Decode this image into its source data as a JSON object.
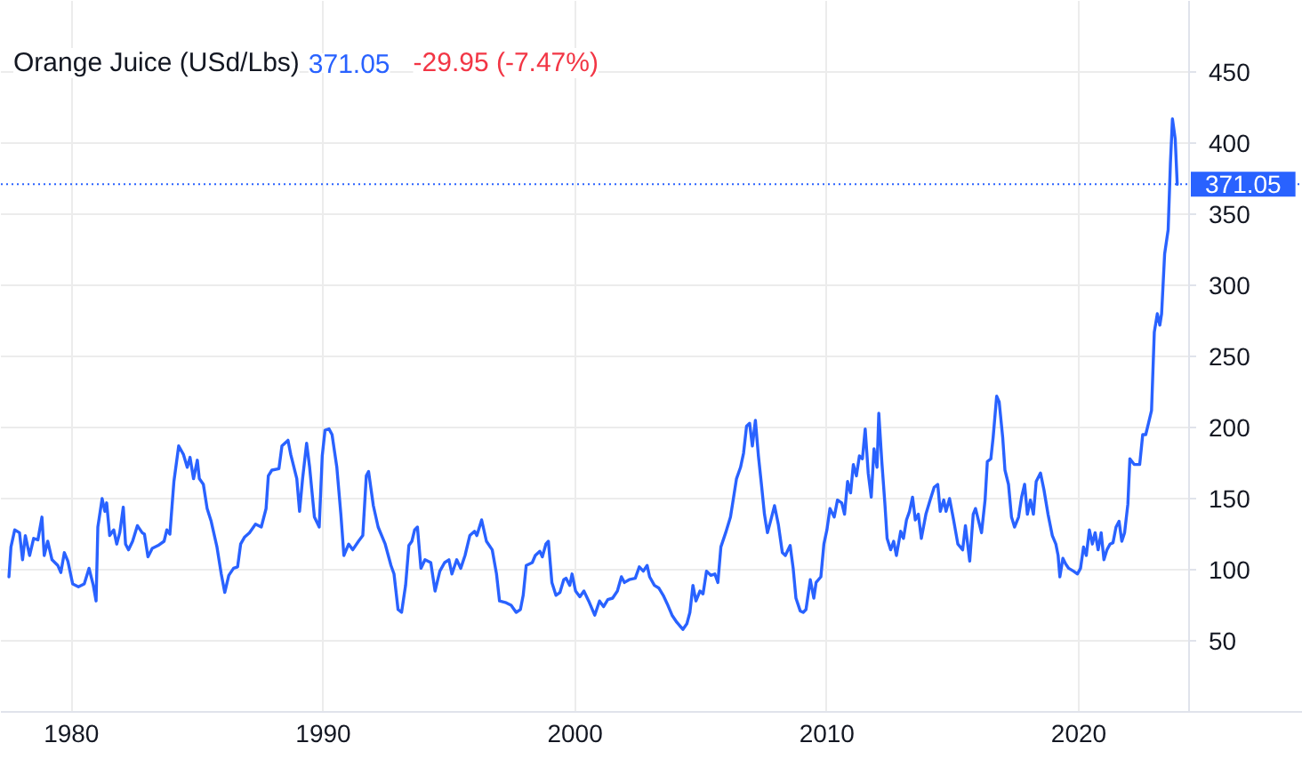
{
  "chart_data": {
    "type": "line",
    "title": "Orange Juice (USd/Lbs)",
    "annotations": [
      "371.05",
      "-29.95 (-7.47%)"
    ],
    "x": [
      1977.52,
      1977.6,
      1977.75,
      1977.94,
      1978.06,
      1978.17,
      1978.34,
      1978.5,
      1978.67,
      1978.83,
      1978.92,
      1979.06,
      1979.23,
      1979.46,
      1979.58,
      1979.72,
      1979.86,
      1980.05,
      1980.28,
      1980.51,
      1980.7,
      1980.87,
      1980.98,
      1981.05,
      1981.22,
      1981.33,
      1981.4,
      1981.52,
      1981.68,
      1981.8,
      1981.92,
      1982.06,
      1982.15,
      1982.27,
      1982.43,
      1982.62,
      1982.81,
      1982.9,
      1983.04,
      1983.21,
      1983.44,
      1983.68,
      1983.79,
      1983.91,
      1984.07,
      1984.26,
      1984.45,
      1984.6,
      1984.71,
      1984.85,
      1985.0,
      1985.08,
      1985.24,
      1985.39,
      1985.55,
      1985.78,
      1985.95,
      1986.09,
      1986.25,
      1986.44,
      1986.6,
      1986.72,
      1986.88,
      1987.07,
      1987.31,
      1987.54,
      1987.73,
      1987.82,
      1987.96,
      1988.24,
      1988.36,
      1988.6,
      1988.71,
      1988.95,
      1989.06,
      1989.18,
      1989.34,
      1989.46,
      1989.65,
      1989.84,
      1989.96,
      1990.07,
      1990.23,
      1990.35,
      1990.54,
      1990.7,
      1990.82,
      1991.01,
      1991.17,
      1991.4,
      1991.57,
      1991.71,
      1991.8,
      1991.99,
      1992.18,
      1992.46,
      1992.69,
      1992.81,
      1992.97,
      1993.11,
      1993.27,
      1993.4,
      1993.52,
      1993.63,
      1993.74,
      1993.88,
      1994.04,
      1994.27,
      1994.44,
      1994.63,
      1994.82,
      1994.99,
      1995.11,
      1995.3,
      1995.46,
      1995.63,
      1995.82,
      1996.01,
      1996.1,
      1996.29,
      1996.48,
      1996.71,
      1996.88,
      1997.0,
      1997.23,
      1997.46,
      1997.66,
      1997.83,
      1997.94,
      1998.06,
      1998.3,
      1998.42,
      1998.6,
      1998.7,
      1998.84,
      1998.94,
      1999.08,
      1999.24,
      1999.4,
      1999.55,
      1999.64,
      1999.79,
      1999.88,
      2000.02,
      2000.19,
      2000.35,
      2000.54,
      2000.78,
      2000.97,
      2001.13,
      2001.3,
      2001.49,
      2001.68,
      2001.84,
      2001.96,
      2002.15,
      2002.39,
      2002.55,
      2002.71,
      2002.86,
      2002.96,
      2003.15,
      2003.33,
      2003.5,
      2003.66,
      2003.85,
      2004.04,
      2004.28,
      2004.44,
      2004.56,
      2004.68,
      2004.8,
      2004.96,
      2005.08,
      2005.22,
      2005.39,
      2005.55,
      2005.67,
      2005.79,
      2005.98,
      2006.17,
      2006.26,
      2006.41,
      2006.57,
      2006.69,
      2006.81,
      2006.93,
      2007.04,
      2007.16,
      2007.28,
      2007.4,
      2007.52,
      2007.64,
      2007.76,
      2007.92,
      2008.07,
      2008.23,
      2008.35,
      2008.54,
      2008.66,
      2008.77,
      2008.94,
      2009.06,
      2009.17,
      2009.34,
      2009.48,
      2009.57,
      2009.76,
      2009.88,
      2010.0,
      2010.12,
      2010.29,
      2010.42,
      2010.59,
      2010.7,
      2010.82,
      2010.94,
      2011.05,
      2011.17,
      2011.29,
      2011.41,
      2011.52,
      2011.64,
      2011.76,
      2011.87,
      2011.99,
      2012.06,
      2012.18,
      2012.3,
      2012.39,
      2012.53,
      2012.65,
      2012.76,
      2012.93,
      2013.04,
      2013.16,
      2013.28,
      2013.4,
      2013.51,
      2013.63,
      2013.75,
      2013.93,
      2014.1,
      2014.26,
      2014.4,
      2014.5,
      2014.64,
      2014.73,
      2014.87,
      2015.03,
      2015.2,
      2015.39,
      2015.5,
      2015.67,
      2015.81,
      2015.9,
      2016.04,
      2016.14,
      2016.28,
      2016.37,
      2016.51,
      2016.6,
      2016.74,
      2016.84,
      2016.98,
      2017.07,
      2017.21,
      2017.33,
      2017.45,
      2017.61,
      2017.73,
      2017.85,
      2017.96,
      2018.08,
      2018.2,
      2018.31,
      2018.48,
      2018.62,
      2018.78,
      2018.95,
      2019.09,
      2019.18,
      2019.25,
      2019.37,
      2019.48,
      2019.6,
      2019.79,
      2019.95,
      2020.07,
      2020.19,
      2020.3,
      2020.42,
      2020.54,
      2020.65,
      2020.77,
      2020.89,
      2021.0,
      2021.12,
      2021.24,
      2021.36,
      2021.48,
      2021.6,
      2021.71,
      2021.82,
      2021.95,
      2022.03,
      2022.2,
      2022.42,
      2022.54,
      2022.66,
      2022.77,
      2022.89,
      2023.0,
      2023.12,
      2023.22,
      2023.29,
      2023.41,
      2023.55,
      2023.64,
      2023.72,
      2023.83,
      2023.91
    ],
    "series": [
      {
        "color": "#2962ff",
        "values": [
          95,
          116,
          128,
          126,
          107,
          124,
          110,
          122,
          121,
          137,
          110,
          120,
          107,
          103,
          98,
          112,
          106,
          90,
          88,
          90,
          101,
          89,
          78,
          130,
          150,
          141,
          147,
          124,
          128,
          118,
          126,
          144,
          118,
          114,
          120,
          131,
          126,
          125,
          109,
          115,
          117,
          120,
          128,
          125,
          162,
          187,
          181,
          172,
          179,
          164,
          177,
          164,
          160,
          143,
          134,
          116,
          97,
          84,
          96,
          101,
          102,
          118,
          123,
          126,
          132,
          130,
          143,
          166,
          170,
          171,
          187,
          191,
          181,
          164,
          141,
          164,
          189,
          172,
          137,
          130,
          180,
          198,
          199,
          195,
          172,
          139,
          110,
          118,
          114,
          120,
          124,
          166,
          169,
          145,
          130,
          118,
          103,
          97,
          72,
          70,
          89,
          117,
          120,
          128,
          130,
          101,
          107,
          105,
          85,
          99,
          105,
          107,
          97,
          107,
          101,
          110,
          124,
          127,
          124,
          135,
          120,
          114,
          97,
          78,
          77,
          75,
          70,
          72,
          82,
          103,
          105,
          110,
          113,
          109,
          118,
          120,
          91,
          82,
          84,
          93,
          94,
          89,
          97,
          85,
          81,
          85,
          78,
          68,
          78,
          74,
          79,
          80,
          85,
          95,
          91,
          93,
          94,
          102,
          99,
          103,
          95,
          89,
          87,
          82,
          76,
          68,
          63,
          58,
          62,
          70,
          89,
          78,
          85,
          83,
          99,
          96,
          97,
          91,
          116,
          126,
          137,
          147,
          164,
          172,
          182,
          201,
          203,
          187,
          205,
          180,
          160,
          139,
          126,
          134,
          145,
          132,
          112,
          110,
          117,
          101,
          80,
          71,
          70,
          72,
          93,
          80,
          91,
          95,
          118,
          128,
          143,
          137,
          149,
          147,
          139,
          162,
          154,
          174,
          166,
          180,
          178,
          199,
          168,
          151,
          185,
          172,
          210,
          176,
          147,
          122,
          114,
          120,
          110,
          127,
          122,
          135,
          141,
          151,
          135,
          139,
          122,
          139,
          149,
          158,
          160,
          141,
          149,
          141,
          150,
          135,
          118,
          114,
          131,
          106,
          139,
          143,
          133,
          126,
          149,
          176,
          178,
          193,
          222,
          218,
          193,
          170,
          160,
          137,
          130,
          137,
          151,
          160,
          139,
          149,
          139,
          162,
          168,
          156,
          139,
          124,
          118,
          110,
          95,
          108,
          104,
          101,
          99,
          97,
          101,
          116,
          110,
          128,
          118,
          126,
          114,
          126,
          107,
          114,
          118,
          119,
          130,
          134,
          120,
          126,
          146,
          178,
          174,
          174,
          195,
          195,
          203,
          212,
          267,
          280,
          272,
          280,
          322,
          339,
          386,
          417,
          403,
          371.05
        ]
      }
    ],
    "xlim": [
      1977.2,
      2028.9
    ],
    "ylim": [
      0,
      500
    ],
    "xticks": [
      1980,
      1990,
      2000,
      2010,
      2020
    ],
    "yticks": [
      50,
      100,
      150,
      200,
      250,
      300,
      350,
      400,
      450
    ],
    "ref_lines": [
      {
        "axis": "y",
        "value": 371.05,
        "label": "371.05",
        "color": "#2962ff",
        "line_style": "dotted"
      }
    ],
    "grid": true
  }
}
